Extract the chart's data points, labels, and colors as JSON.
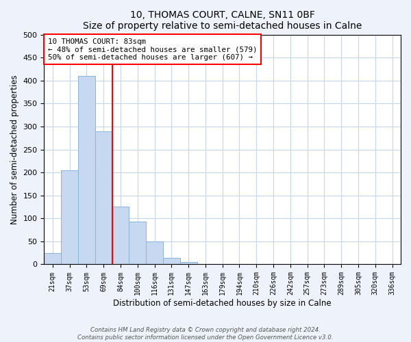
{
  "title": "10, THOMAS COURT, CALNE, SN11 0BF",
  "subtitle": "Size of property relative to semi-detached houses in Calne",
  "xlabel": "Distribution of semi-detached houses by size in Calne",
  "ylabel": "Number of semi-detached properties",
  "footer_line1": "Contains HM Land Registry data © Crown copyright and database right 2024.",
  "footer_line2": "Contains public sector information licensed under the Open Government Licence v3.0.",
  "bar_labels": [
    "21sqm",
    "37sqm",
    "53sqm",
    "69sqm",
    "84sqm",
    "100sqm",
    "116sqm",
    "131sqm",
    "147sqm",
    "163sqm",
    "179sqm",
    "194sqm",
    "210sqm",
    "226sqm",
    "242sqm",
    "257sqm",
    "273sqm",
    "289sqm",
    "305sqm",
    "320sqm",
    "336sqm"
  ],
  "bar_values": [
    25,
    205,
    410,
    290,
    125,
    93,
    50,
    14,
    5,
    0,
    0,
    0,
    0,
    1,
    0,
    0,
    0,
    0,
    1,
    0,
    1
  ],
  "bar_color": "#c6d9f0",
  "bar_edge_color": "#8ab4d8",
  "property_line_color": "red",
  "property_line_x": 3.5,
  "annotation_title": "10 THOMAS COURT: 83sqm",
  "annotation_line1": "← 48% of semi-detached houses are smaller (579)",
  "annotation_line2": "50% of semi-detached houses are larger (607) →",
  "annotation_box_color": "white",
  "annotation_box_edge_color": "red",
  "ylim": [
    0,
    500
  ],
  "yticks": [
    0,
    50,
    100,
    150,
    200,
    250,
    300,
    350,
    400,
    450,
    500
  ],
  "background_color": "#eef2fb",
  "plot_background_color": "#ffffff",
  "grid_color": "#c5d5ea"
}
